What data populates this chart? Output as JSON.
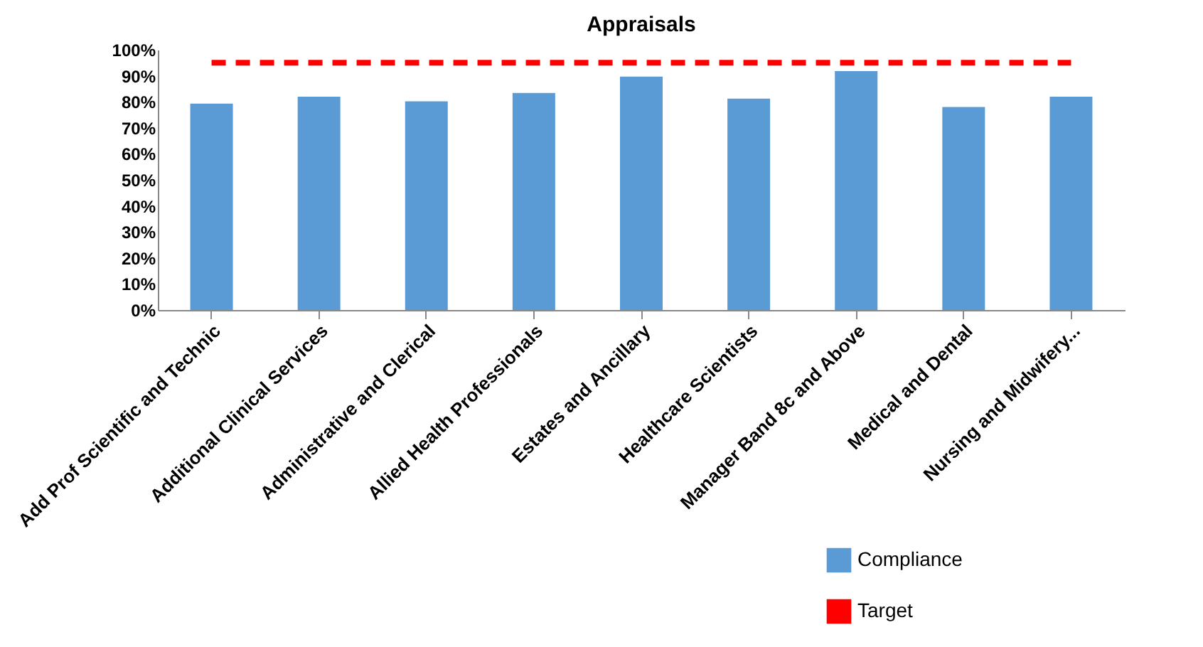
{
  "chart_data": {
    "type": "bar",
    "title": "Appraisals",
    "categories": [
      "Add Prof Scientific and Technic",
      "Additional Clinical Services",
      "Administrative and Clerical",
      "Allied Health Professionals",
      "Estates and Ancillary",
      "Healthcare Scientists",
      "Manager Band 8c and Above",
      "Medical and Dental",
      "Nursing and Midwifery..."
    ],
    "series": [
      {
        "name": "Compliance",
        "color": "#5b9bd5",
        "values": [
          79.3,
          82,
          80.2,
          83.4,
          89.7,
          81.2,
          91.8,
          78,
          82
        ]
      },
      {
        "name": "Target",
        "type": "line",
        "color": "#ff0000",
        "line_style": "dashed",
        "values": [
          95,
          95,
          95,
          95,
          95,
          95,
          95,
          95,
          95
        ]
      }
    ],
    "ylim": [
      0,
      100
    ],
    "yticks": [
      {
        "value": 0,
        "label": "0%"
      },
      {
        "value": 10,
        "label": "10%"
      },
      {
        "value": 20,
        "label": "20%"
      },
      {
        "value": 30,
        "label": "30%"
      },
      {
        "value": 40,
        "label": "40%"
      },
      {
        "value": 50,
        "label": "50%"
      },
      {
        "value": 60,
        "label": "60%"
      },
      {
        "value": 70,
        "label": "70%"
      },
      {
        "value": 80,
        "label": "80%"
      },
      {
        "value": 90,
        "label": "90%"
      },
      {
        "value": 100,
        "label": "100%"
      }
    ],
    "grid": false,
    "legend": "bottom right"
  }
}
